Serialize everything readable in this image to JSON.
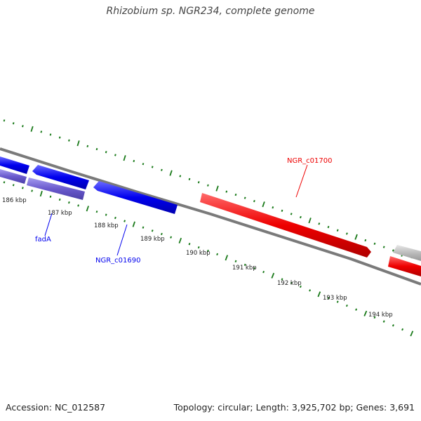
{
  "title": "Rhizobium sp. NGR234, complete genome",
  "footer": {
    "accession": "Accession: NC_012587",
    "summary": "Topology: circular; Length: 3,925,702 bp; Genes: 3,691"
  },
  "colors": {
    "minus_strand_gene": "#0000ee",
    "operon_gene": "#6a5acd",
    "highlight_gene": "#ee0000",
    "other_gene": "#bbbbbb",
    "backbone": "#7a7a7a",
    "ticks": "#1a7a1a"
  },
  "ruler": {
    "unit": "kbp",
    "tick_labels": [
      "186 kbp",
      "187 kbp",
      "188 kbp",
      "189 kbp",
      "190 kbp",
      "191 kbp",
      "192 kbp",
      "193 kbp",
      "194 kbp"
    ]
  },
  "genes": [
    {
      "name": "fadA",
      "strand": "minus",
      "track": "inner",
      "color_key": "operon_gene",
      "labeled": true
    },
    {
      "name": "NGR_c01690",
      "strand": "minus",
      "track": "outer",
      "color_key": "minus_strand_gene",
      "labeled": true
    },
    {
      "name": "NGR_c01700",
      "strand": "plus",
      "track": "inner",
      "color_key": "highlight_gene",
      "labeled": true
    }
  ]
}
